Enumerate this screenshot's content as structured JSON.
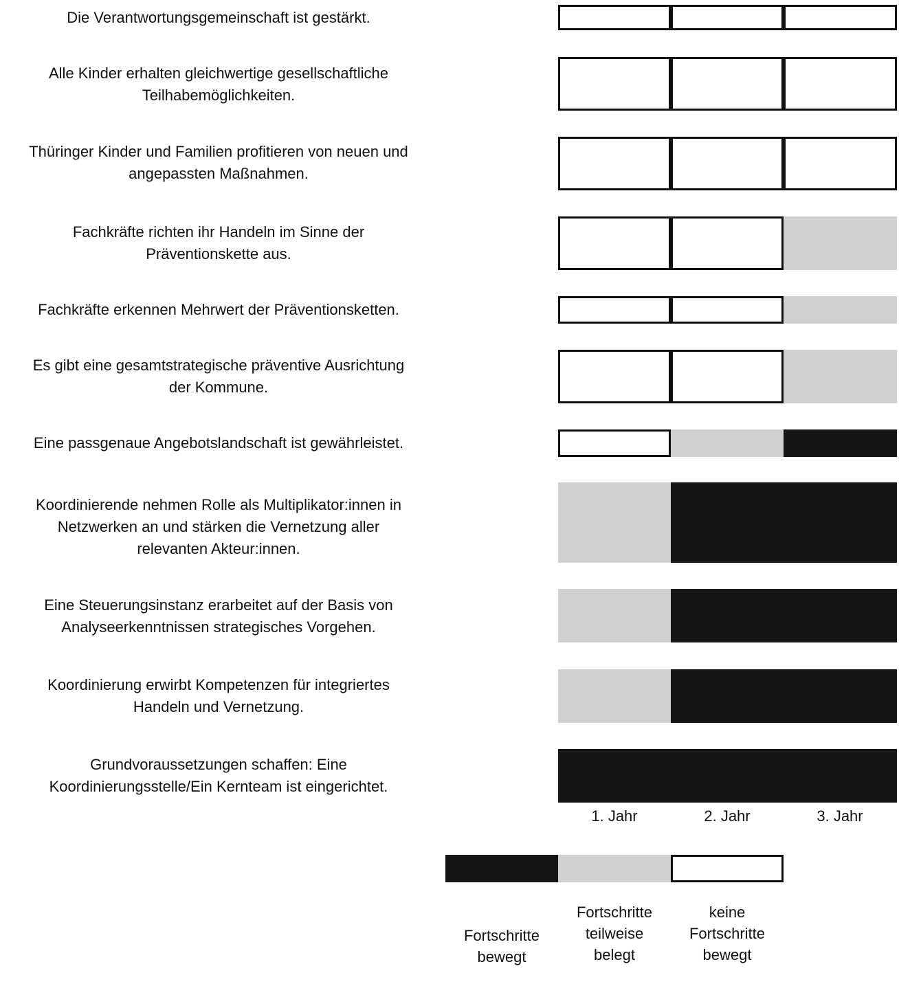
{
  "chart_data": {
    "type": "heatmap",
    "title": "",
    "columns": [
      "1. Jahr",
      "2. Jahr",
      "3. Jahr"
    ],
    "rows": [
      {
        "label": "Die Verantwortungsgemeinschaft ist gestärkt.",
        "status": [
          "none",
          "none",
          "none"
        ]
      },
      {
        "label": "Alle Kinder erhalten gleichwertige gesellschaftliche Teilhabemöglichkeiten.",
        "status": [
          "none",
          "none",
          "none"
        ]
      },
      {
        "label": "Thüringer Kinder und Familien profitieren von neuen und angepassten Maßnahmen.",
        "status": [
          "none",
          "none",
          "none"
        ]
      },
      {
        "label": "Fachkräfte richten ihr Handeln im Sinne der Präventionskette aus.",
        "status": [
          "none",
          "none",
          "partial"
        ]
      },
      {
        "label": "Fachkräfte erkennen Mehrwert der Präventionsketten.",
        "status": [
          "none",
          "none",
          "partial"
        ]
      },
      {
        "label": "Es gibt eine gesamtstrategische präventive Ausrichtung der Kommune.",
        "status": [
          "none",
          "none",
          "partial"
        ]
      },
      {
        "label": "Eine passgenaue Angebotslandschaft ist gewährleistet.",
        "status": [
          "none",
          "partial",
          "full"
        ]
      },
      {
        "label": "Koordinierende nehmen Rolle als Multiplikator:innen in Netzwerken an und stärken die Vernetzung aller relevanten Akteur:innen.",
        "status": [
          "partial",
          "full",
          "full"
        ]
      },
      {
        "label": "Eine Steuerungsinstanz erarbeitet auf der Basis von Analyseerkenntnissen strategisches Vorgehen.",
        "status": [
          "partial",
          "full",
          "full"
        ]
      },
      {
        "label": "Koordinierung erwirbt Kompetenzen für integriertes Handeln und Vernetzung.",
        "status": [
          "partial",
          "full",
          "full"
        ]
      },
      {
        "label": "Grundvoraussetzungen schaffen: Eine Koordinierungsstelle/Ein Kernteam ist eingerichtet.",
        "status": [
          "full",
          "full",
          "full"
        ]
      }
    ],
    "legend": [
      {
        "status": "full",
        "label": "Fortschritte bewegt",
        "color": "#161616"
      },
      {
        "status": "partial",
        "label": "Fortschritte teilweise belegt",
        "color": "#d0d0d0"
      },
      {
        "status": "none",
        "label": "keine Fortschritte bewegt",
        "color": "#ffffff"
      }
    ]
  }
}
